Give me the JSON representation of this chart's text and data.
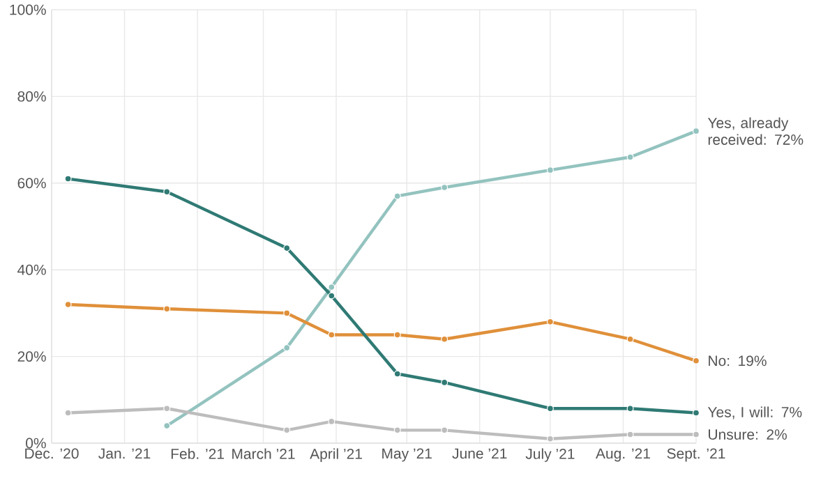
{
  "chart_data": {
    "type": "line",
    "x": [
      "2020-12-08",
      "2021-01-19",
      "2021-03-11",
      "2021-03-30",
      "2021-04-27",
      "2021-05-17",
      "2021-07-01",
      "2021-08-04",
      "2021-09-01"
    ],
    "series": [
      {
        "name": "Yes, already received: 72%",
        "color": "#93c3bf",
        "values": [
          null,
          4,
          22,
          36,
          57,
          59,
          63,
          66,
          72
        ]
      },
      {
        "name": "No: 19%",
        "color": "#e0903a",
        "values": [
          32,
          31,
          30,
          25,
          25,
          24,
          28,
          24,
          19
        ]
      },
      {
        "name": "Yes, I will: 7%",
        "color": "#2f7a74",
        "values": [
          61,
          58,
          45,
          34,
          16,
          14,
          8,
          8,
          7
        ]
      },
      {
        "name": "Unsure: 2%",
        "color": "#bdbdbd",
        "values": [
          7,
          8,
          3,
          5,
          3,
          3,
          1,
          2,
          2
        ]
      }
    ],
    "xlim": [
      "2020-12-01",
      "2021-09-01"
    ],
    "xticks": [
      {
        "value": "2020-12-01",
        "label": "Dec. ’20"
      },
      {
        "value": "2021-01-01",
        "label": "Jan. ’21"
      },
      {
        "value": "2021-02-01",
        "label": "Feb. ’21"
      },
      {
        "value": "2021-03-01",
        "label": "March ’21"
      },
      {
        "value": "2021-04-01",
        "label": "April ’21"
      },
      {
        "value": "2021-05-01",
        "label": "May ’21"
      },
      {
        "value": "2021-06-01",
        "label": "June ’21"
      },
      {
        "value": "2021-07-01",
        "label": "July ’21"
      },
      {
        "value": "2021-08-01",
        "label": "Aug. ’21"
      },
      {
        "value": "2021-09-01",
        "label": "Sept. ’21"
      }
    ],
    "ylim": [
      0,
      100
    ],
    "yticks": [
      {
        "value": 0,
        "label": "0%"
      },
      {
        "value": 20,
        "label": "20%"
      },
      {
        "value": 40,
        "label": "40%"
      },
      {
        "value": 60,
        "label": "60%"
      },
      {
        "value": 80,
        "label": "80%"
      },
      {
        "value": 100,
        "label": "100%"
      }
    ],
    "grid": true,
    "legend": false,
    "marker": "circle",
    "line_style": "solid"
  }
}
